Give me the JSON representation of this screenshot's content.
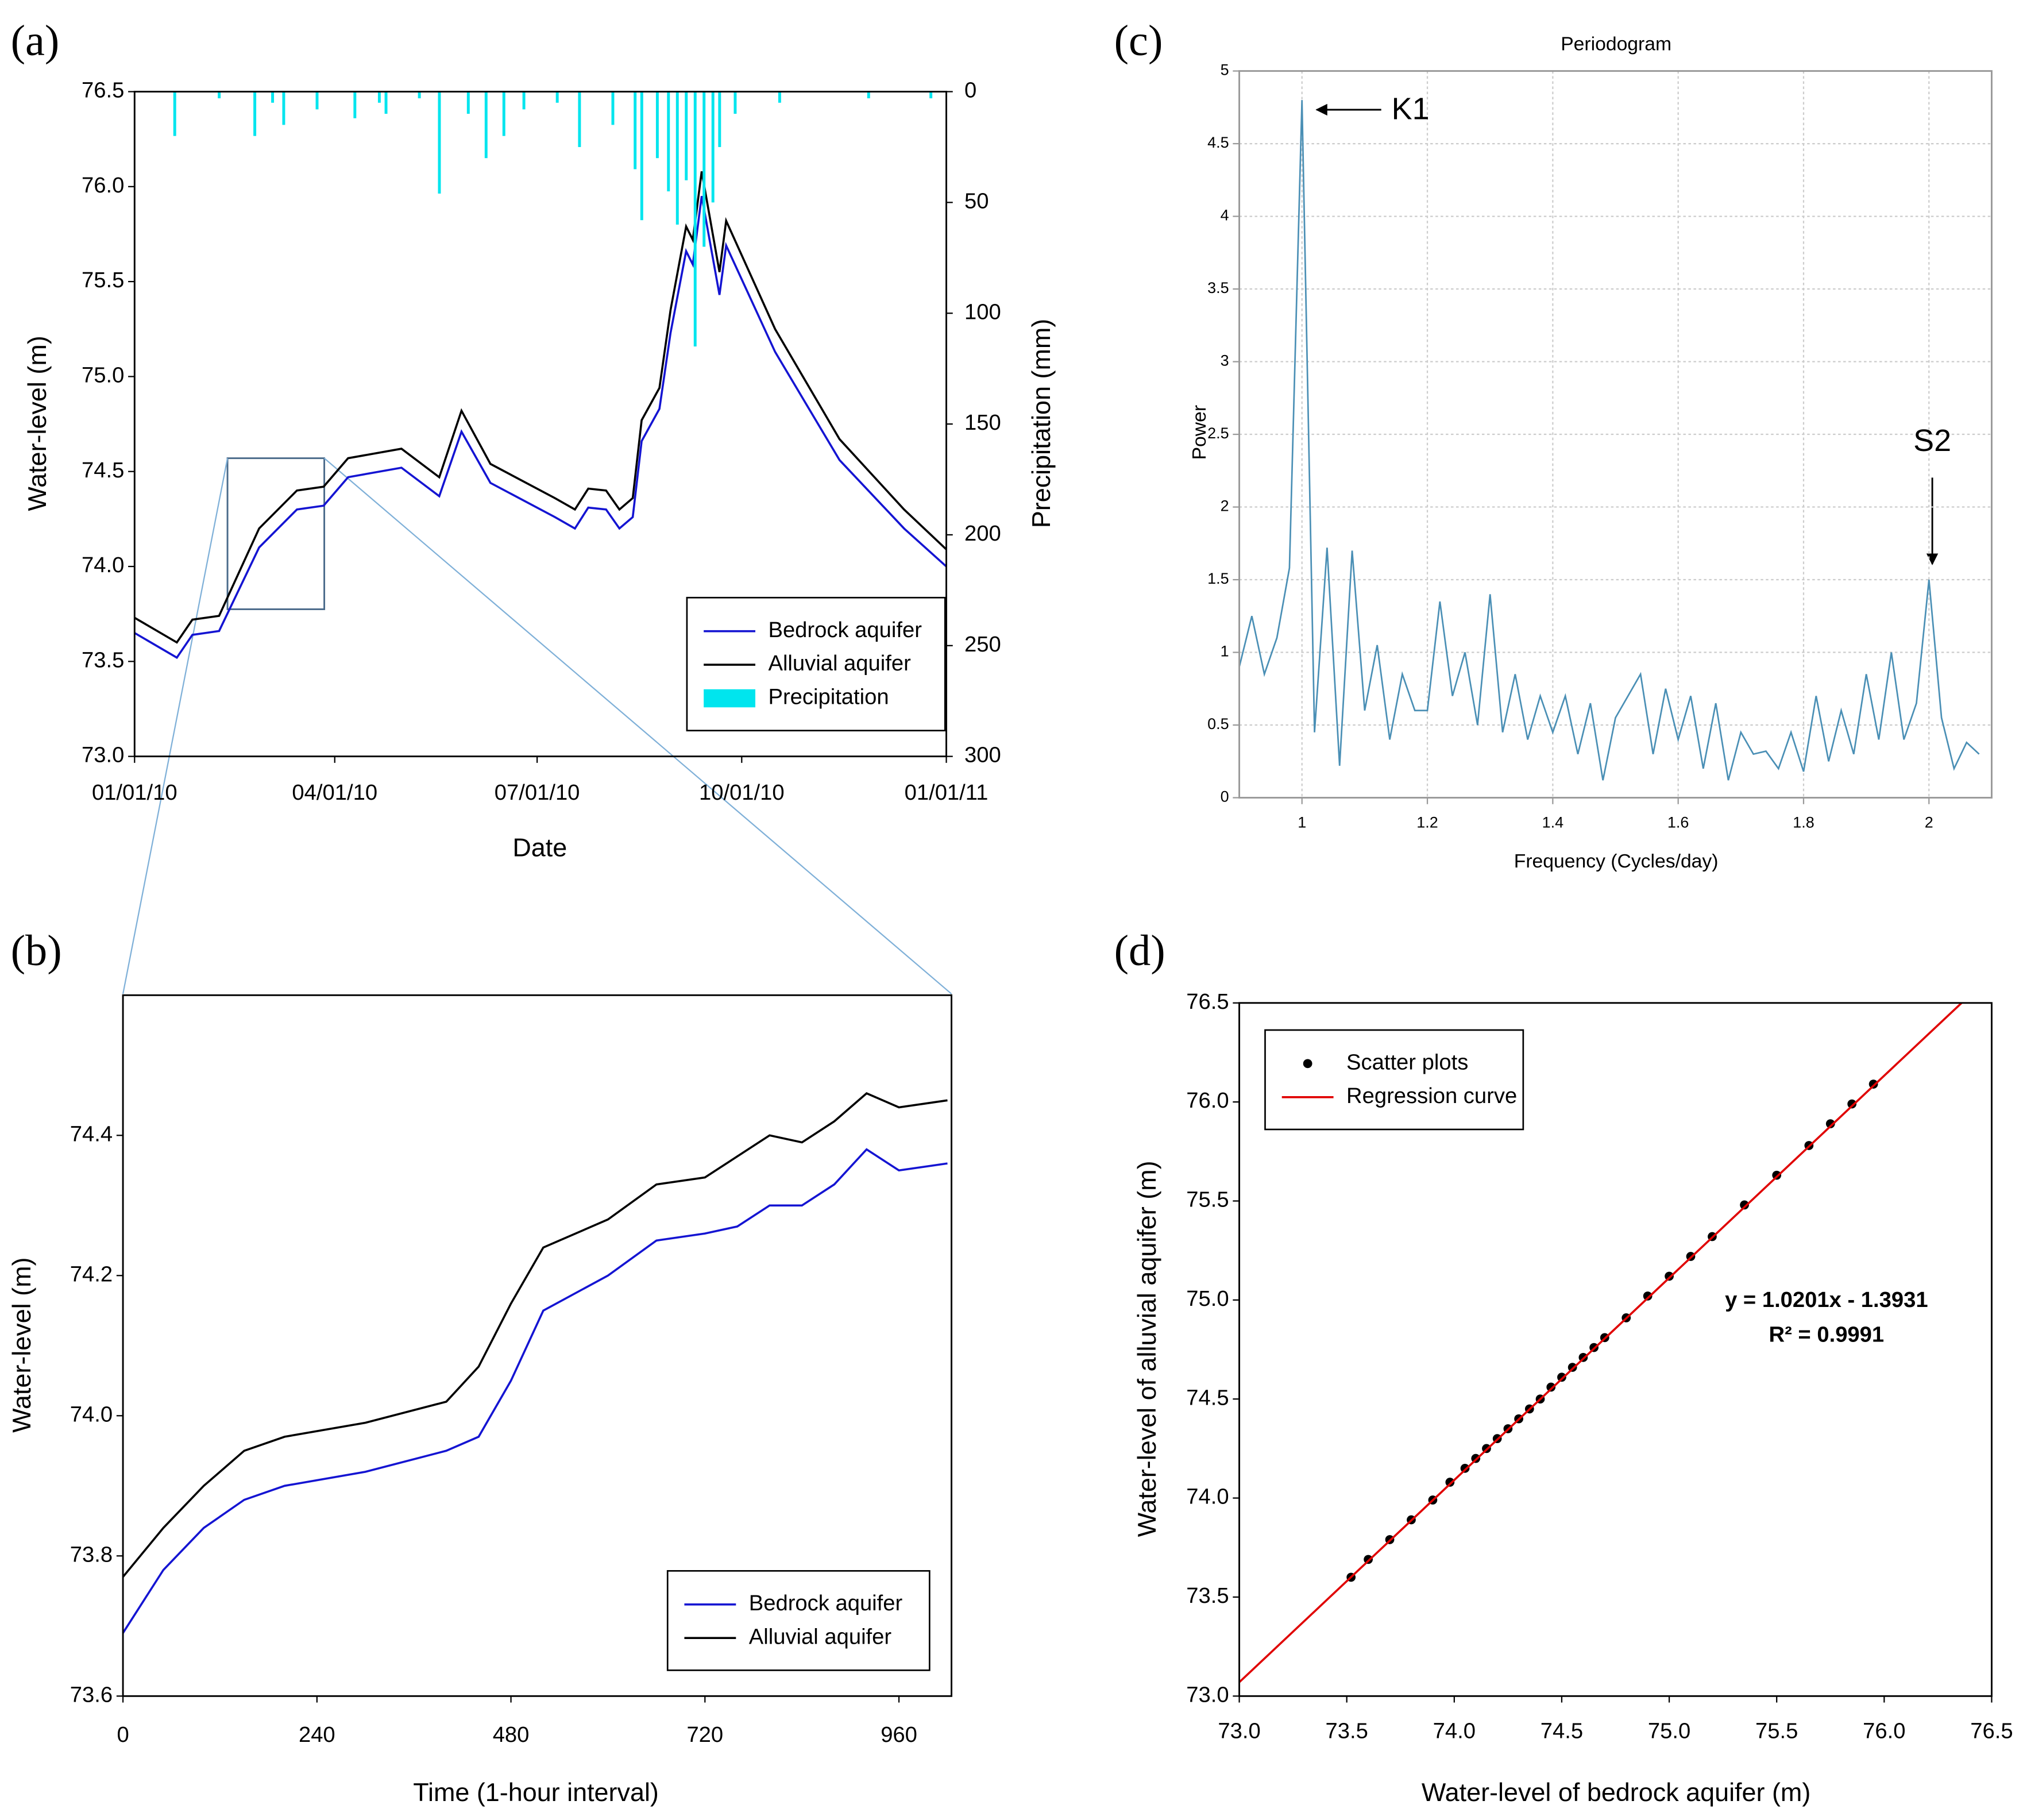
{
  "chart_data": [
    {
      "type": "line",
      "panel_label": "(a)",
      "x_label": "Date",
      "y_label": "Water-level (m)",
      "y2_label": "Precipitation (mm)",
      "x": [
        "2010-01-01",
        "2010-01-20",
        "2010-01-27",
        "2010-02-08",
        "2010-02-26",
        "2010-03-15",
        "2010-03-27",
        "2010-04-07",
        "2010-05-01",
        "2010-05-18",
        "2010-05-28",
        "2010-06-10",
        "2010-07-09",
        "2010-07-18",
        "2010-07-24",
        "2010-08-01",
        "2010-08-07",
        "2010-08-13",
        "2010-08-17",
        "2010-08-25",
        "2010-08-30",
        "2010-09-06",
        "2010-09-09",
        "2010-09-13",
        "2010-09-21",
        "2010-09-24",
        "2010-10-16",
        "2010-11-14",
        "2010-12-13",
        "2011-01-01"
      ],
      "xlim": [
        "2010-01-01",
        "2011-01-01"
      ],
      "xticks": [
        {
          "value": "2010-01-01",
          "label": "01/01/10"
        },
        {
          "value": "2010-04-01",
          "label": "04/01/10"
        },
        {
          "value": "2010-07-01",
          "label": "07/01/10"
        },
        {
          "value": "2010-10-01",
          "label": "10/01/10"
        },
        {
          "value": "2011-01-01",
          "label": "01/01/11"
        }
      ],
      "ylim": [
        73,
        76.5
      ],
      "yticks": [
        {
          "value": 73,
          "label": "73.0"
        },
        73.5,
        {
          "value": 74,
          "label": "74.0"
        },
        74.5,
        {
          "value": 75,
          "label": "75.0"
        },
        75.5,
        {
          "value": 76,
          "label": "76.0"
        },
        76.5
      ],
      "y2lim": [
        300,
        0
      ],
      "y2ticks": [
        0,
        50,
        100,
        150,
        200,
        250,
        300
      ],
      "legend": "lower right",
      "series": [
        {
          "name": "Bedrock aquifer",
          "color": "#1414d2",
          "values": [
            73.65,
            73.52,
            73.64,
            73.66,
            74.1,
            74.3,
            74.32,
            74.47,
            74.52,
            74.37,
            74.71,
            74.44,
            74.26,
            74.2,
            74.31,
            74.3,
            74.2,
            74.26,
            74.66,
            74.83,
            75.23,
            75.66,
            75.59,
            75.95,
            75.43,
            75.69,
            75.13,
            74.56,
            74.2,
            74.0
          ]
        },
        {
          "name": "Alluvial aquifer",
          "color": "#000000",
          "values": [
            73.73,
            73.6,
            73.72,
            73.74,
            74.2,
            74.4,
            74.42,
            74.57,
            74.62,
            74.47,
            74.82,
            74.54,
            74.36,
            74.3,
            74.41,
            74.4,
            74.3,
            74.36,
            74.77,
            74.94,
            75.35,
            75.79,
            75.72,
            76.08,
            75.55,
            75.82,
            75.25,
            74.67,
            74.3,
            74.09
          ]
        },
        {
          "name": "Precipitation",
          "type": "bar",
          "axis": "y2",
          "color": "#00e5ee",
          "x": [
            "2010-01-19",
            "2010-02-08",
            "2010-02-24",
            "2010-03-04",
            "2010-03-09",
            "2010-03-24",
            "2010-04-10",
            "2010-04-21",
            "2010-04-24",
            "2010-05-09",
            "2010-05-18",
            "2010-05-31",
            "2010-06-08",
            "2010-06-16",
            "2010-06-25",
            "2010-07-10",
            "2010-07-20",
            "2010-08-04",
            "2010-08-14",
            "2010-08-17",
            "2010-08-24",
            "2010-08-29",
            "2010-09-02",
            "2010-09-06",
            "2010-09-10",
            "2010-09-14",
            "2010-09-18",
            "2010-09-21",
            "2010-09-28",
            "2010-10-18",
            "2010-11-27",
            "2010-12-25"
          ],
          "values": [
            20,
            3,
            20,
            5,
            15,
            8,
            12,
            5,
            10,
            3,
            46,
            10,
            30,
            20,
            8,
            5,
            25,
            15,
            35,
            58,
            30,
            45,
            60,
            40,
            115,
            70,
            50,
            25,
            10,
            5,
            3,
            3
          ]
        }
      ]
    },
    {
      "type": "line",
      "panel_label": "(b)",
      "x_label": "Time (1-hour interval)",
      "y_label": "Water-level (m)",
      "x": [
        0,
        50,
        100,
        150,
        200,
        300,
        400,
        440,
        480,
        520,
        600,
        660,
        720,
        760,
        800,
        840,
        880,
        920,
        960,
        1020
      ],
      "xlim": [
        0,
        1025
      ],
      "xticks": [
        0,
        240,
        480,
        720,
        960
      ],
      "ylim": [
        73.6,
        74.6
      ],
      "yticks": [
        73.6,
        73.8,
        {
          "value": 74,
          "label": "74.0"
        },
        74.2,
        74.4
      ],
      "legend": "lower right",
      "series": [
        {
          "name": "Bedrock aquifer",
          "color": "#1414d2",
          "values": [
            73.69,
            73.78,
            73.84,
            73.88,
            73.9,
            73.92,
            73.95,
            73.97,
            74.05,
            74.15,
            74.2,
            74.25,
            74.26,
            74.27,
            74.3,
            74.3,
            74.33,
            74.38,
            74.35,
            74.36
          ]
        },
        {
          "name": "Alluvial aquifer",
          "color": "#000000",
          "values": [
            73.77,
            73.84,
            73.9,
            73.95,
            73.97,
            73.99,
            74.02,
            74.07,
            74.16,
            74.24,
            74.28,
            74.33,
            74.34,
            74.37,
            74.4,
            74.39,
            74.42,
            74.46,
            74.44,
            74.45
          ]
        }
      ]
    },
    {
      "type": "line",
      "panel_label": "(c)",
      "title": "Periodogram",
      "x_label": "Frequency (Cycles/day)",
      "y_label": "Power",
      "x": [
        0.9,
        0.92,
        0.94,
        0.96,
        0.98,
        1.0,
        1.02,
        1.04,
        1.06,
        1.08,
        1.1,
        1.12,
        1.14,
        1.16,
        1.18,
        1.2,
        1.22,
        1.24,
        1.26,
        1.28,
        1.3,
        1.32,
        1.34,
        1.36,
        1.38,
        1.4,
        1.42,
        1.44,
        1.46,
        1.48,
        1.5,
        1.52,
        1.54,
        1.56,
        1.58,
        1.6,
        1.62,
        1.64,
        1.66,
        1.68,
        1.7,
        1.72,
        1.74,
        1.76,
        1.78,
        1.8,
        1.82,
        1.84,
        1.86,
        1.88,
        1.9,
        1.92,
        1.94,
        1.96,
        1.98,
        2.0,
        2.02,
        2.04,
        2.06,
        2.08
      ],
      "xlim": [
        0.9,
        2.1
      ],
      "xticks": [
        1,
        1.2,
        1.4,
        1.6,
        1.8,
        2
      ],
      "ylim": [
        0,
        5
      ],
      "yticks": [
        0,
        0.5,
        1,
        1.5,
        2,
        2.5,
        3,
        3.5,
        4,
        4.5,
        5
      ],
      "grid": true,
      "series": [
        {
          "color": "#4a8fb5",
          "values": [
            0.9,
            1.25,
            0.85,
            1.1,
            1.58,
            4.8,
            0.45,
            1.72,
            0.22,
            1.7,
            0.6,
            1.05,
            0.4,
            0.85,
            0.6,
            0.6,
            1.35,
            0.7,
            1.0,
            0.5,
            1.4,
            0.45,
            0.85,
            0.4,
            0.7,
            0.45,
            0.7,
            0.3,
            0.65,
            0.12,
            0.55,
            0.7,
            0.85,
            0.3,
            0.75,
            0.4,
            0.7,
            0.2,
            0.65,
            0.12,
            0.45,
            0.3,
            0.32,
            0.2,
            0.45,
            0.18,
            0.7,
            0.25,
            0.6,
            0.3,
            0.85,
            0.4,
            1.0,
            0.4,
            0.65,
            1.5,
            0.55,
            0.2,
            0.38,
            0.3
          ]
        }
      ],
      "annotations": [
        "K1",
        "S2"
      ]
    },
    {
      "type": "scatter",
      "panel_label": "(d)",
      "x_label": "Water-level of bedrock aquifer (m)",
      "y_label": "Water-level of alluvial aquifer (m)",
      "xlim": [
        73,
        76.5
      ],
      "ylim": [
        73,
        76.5
      ],
      "xticks": [
        {
          "value": 73,
          "label": "73.0"
        },
        73.5,
        {
          "value": 74,
          "label": "74.0"
        },
        74.5,
        {
          "value": 75,
          "label": "75.0"
        },
        75.5,
        {
          "value": 76,
          "label": "76.0"
        },
        76.5
      ],
      "yticks": [
        {
          "value": 73,
          "label": "73.0"
        },
        73.5,
        {
          "value": 74,
          "label": "74.0"
        },
        74.5,
        {
          "value": 75,
          "label": "75.0"
        },
        75.5,
        {
          "value": 76,
          "label": "76.0"
        },
        76.5
      ],
      "legend": "upper left",
      "series": [
        {
          "name": "Scatter plots",
          "color": "#000000",
          "x": [
            73.52,
            73.6,
            73.7,
            73.8,
            73.9,
            73.98,
            74.05,
            74.1,
            74.15,
            74.2,
            74.25,
            74.3,
            74.35,
            74.4,
            74.45,
            74.5,
            74.55,
            74.6,
            74.65,
            74.7,
            74.8,
            74.9,
            75.0,
            75.1,
            75.2,
            75.35,
            75.5,
            75.65,
            75.75,
            75.85,
            75.95
          ],
          "values": [
            73.6,
            73.69,
            73.79,
            73.89,
            73.99,
            74.08,
            74.15,
            74.2,
            74.25,
            74.3,
            74.35,
            74.4,
            74.45,
            74.5,
            74.56,
            74.61,
            74.66,
            74.71,
            74.76,
            74.81,
            74.91,
            75.02,
            75.12,
            75.22,
            75.32,
            75.48,
            75.63,
            75.78,
            75.89,
            75.99,
            76.09
          ]
        },
        {
          "name": "Regression curve",
          "type": "line",
          "color": "#e00000",
          "x": [
            73,
            76.36
          ],
          "values": [
            73.07,
            76.5
          ]
        }
      ],
      "annotations": [
        "y = 1.0201x - 1.3931",
        "R² = 0.9991"
      ]
    }
  ]
}
